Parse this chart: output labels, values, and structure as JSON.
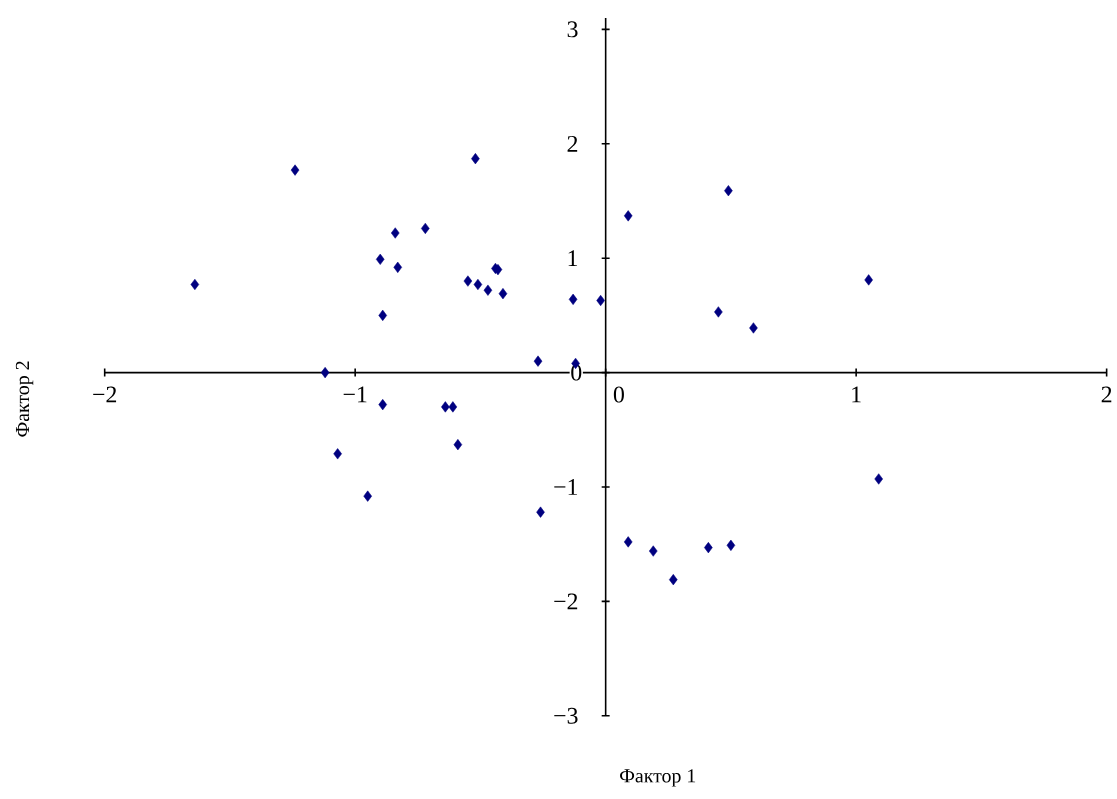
{
  "chart_data": {
    "type": "scatter",
    "xlabel": "Фактор 1",
    "ylabel": "Фактор 2",
    "marker": "diamond",
    "color": "#000080",
    "grid": false,
    "xlim": [
      -2,
      2
    ],
    "ylim": [
      -3,
      3.1
    ],
    "xticks": [
      {
        "value": -2,
        "label": "−2"
      },
      {
        "value": -1,
        "label": "−1"
      },
      0,
      1,
      2
    ],
    "yticks": [
      {
        "value": -3,
        "label": "−3"
      },
      {
        "value": -2,
        "label": "−2"
      },
      {
        "value": -1,
        "label": "−1"
      },
      0,
      1,
      2,
      3
    ],
    "x": [
      -1.64,
      -1.24,
      -1.12,
      -1.07,
      -0.95,
      -0.9,
      -0.89,
      -0.89,
      -0.84,
      -0.83,
      -0.72,
      -0.64,
      -0.61,
      -0.59,
      -0.55,
      -0.52,
      -0.51,
      -0.47,
      -0.44,
      -0.43,
      -0.41,
      -0.27,
      -0.26,
      -0.13,
      -0.12,
      -0.02,
      0.09,
      0.49,
      0.45,
      0.59,
      1.05,
      1.09,
      0.09,
      0.19,
      0.27,
      0.41,
      0.5
    ],
    "values": [
      0.77,
      1.77,
      0.0,
      -0.71,
      -1.08,
      0.99,
      0.5,
      -0.28,
      1.22,
      0.92,
      1.26,
      -0.3,
      -0.3,
      -0.63,
      0.8,
      1.87,
      0.77,
      0.72,
      0.91,
      0.9,
      0.69,
      0.1,
      -1.22,
      0.64,
      0.08,
      0.63,
      1.37,
      1.59,
      0.53,
      0.39,
      0.81,
      -0.93,
      -1.48,
      -1.56,
      -1.81,
      -1.53,
      -1.51
    ]
  }
}
